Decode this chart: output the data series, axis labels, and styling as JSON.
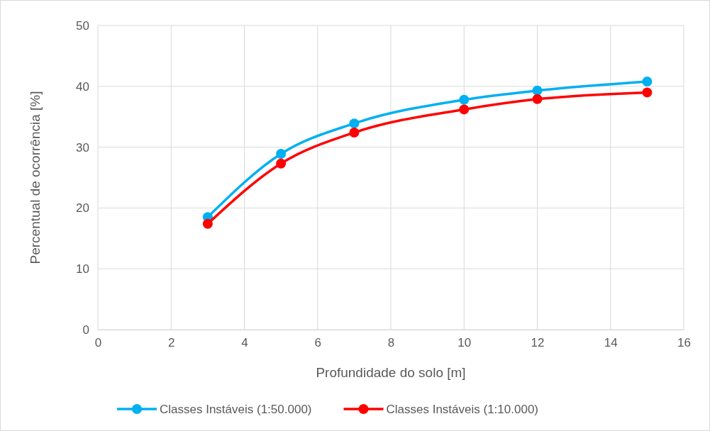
{
  "chart_data": {
    "type": "line",
    "xlabel": "Profundidade do solo [m]",
    "ylabel": "Percentual de ocorrência [%]",
    "x": [
      3,
      5,
      7,
      10,
      12,
      15
    ],
    "series": [
      {
        "name": "Classes Instáveis (1:50.000)",
        "color": "#00b0f0",
        "values": [
          18.5,
          28.9,
          33.9,
          37.8,
          39.3,
          40.8
        ]
      },
      {
        "name": "Classes Instáveis (1:10.000)",
        "color": "#ff0000",
        "values": [
          17.4,
          27.3,
          32.4,
          36.2,
          37.9,
          39.0
        ]
      }
    ],
    "xlim": [
      0,
      16
    ],
    "xticks": [
      0,
      2,
      4,
      6,
      8,
      10,
      12,
      14,
      16
    ],
    "ylim": [
      0,
      50
    ],
    "yticks": [
      0,
      10,
      20,
      30,
      40,
      50
    ],
    "grid": true,
    "legend": "bottom",
    "marker": "circle",
    "line_style": "solid"
  }
}
